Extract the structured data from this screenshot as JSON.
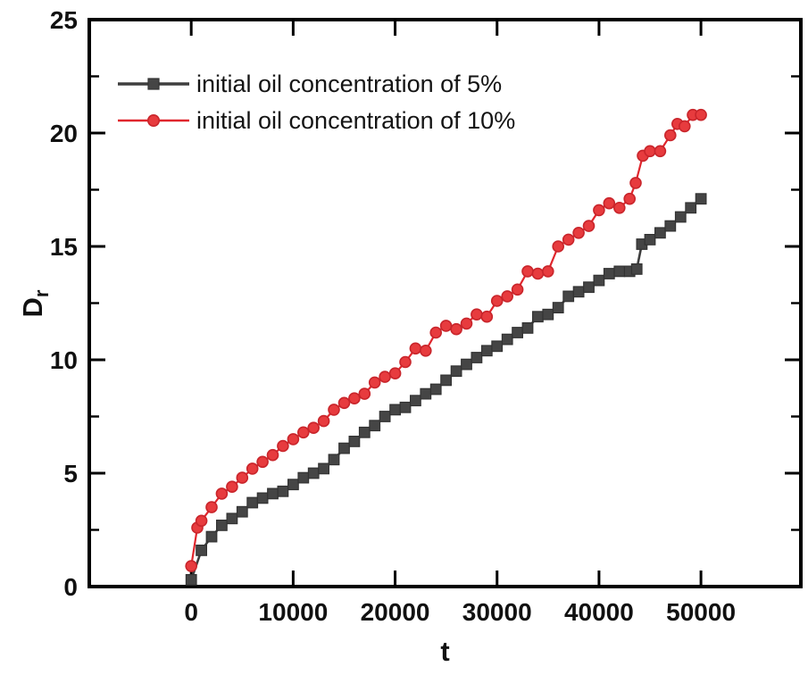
{
  "figure": {
    "background": "#ffffff",
    "legend": {
      "items": [
        {
          "label": "initial oil concentration of 5%",
          "marker": "square",
          "line_color": "#3e3e3e",
          "marker_fill": "#454545",
          "marker_stroke": "#323232"
        },
        {
          "label": "initial oil concentration of 10%",
          "marker": "circle",
          "line_color": "#e0262d",
          "marker_fill": "#e73b3e",
          "marker_stroke": "#c9252b"
        }
      ]
    },
    "axes": {
      "x": {
        "label": "t",
        "major_ticks": [
          0,
          10000,
          20000,
          30000,
          40000,
          50000
        ],
        "range": [
          -10000,
          59800
        ]
      },
      "y": {
        "label": "D",
        "label_subscript": "r",
        "major_ticks": [
          0,
          5,
          10,
          15,
          20,
          25
        ],
        "minor_ticks": [
          2.5,
          7.5,
          12.5,
          17.5,
          22.5
        ],
        "range": [
          0,
          25
        ]
      }
    }
  },
  "chart_data": {
    "type": "line",
    "title": "",
    "xlabel": "t",
    "ylabel": "Dr",
    "xlim": [
      -10000,
      59800
    ],
    "ylim": [
      0,
      25
    ],
    "x_ticks": [
      0,
      10000,
      20000,
      30000,
      40000,
      50000
    ],
    "y_ticks": [
      0,
      5,
      10,
      15,
      20,
      25
    ],
    "y_minor_ticks": [
      2.5,
      7.5,
      12.5,
      17.5,
      22.5
    ],
    "grid": false,
    "legend_position": "upper-left-inside",
    "series": [
      {
        "name": "initial oil concentration of 5%",
        "marker": "square",
        "color": "#454545",
        "x": [
          0,
          1000,
          2000,
          3000,
          4000,
          5000,
          6000,
          7000,
          8000,
          9000,
          10000,
          11000,
          12000,
          13000,
          14000,
          15000,
          16000,
          17000,
          18000,
          19000,
          20000,
          21000,
          22000,
          23000,
          24000,
          25000,
          26000,
          27000,
          28000,
          29000,
          30000,
          31000,
          32000,
          33000,
          34000,
          35000,
          36000,
          37000,
          38000,
          39000,
          40000,
          41000,
          42000,
          43000,
          43700,
          44200,
          45000,
          46000,
          47000,
          48000,
          49000,
          50000
        ],
        "y": [
          0.3,
          1.6,
          2.2,
          2.7,
          3.0,
          3.3,
          3.7,
          3.9,
          4.1,
          4.2,
          4.5,
          4.8,
          5.0,
          5.2,
          5.6,
          6.1,
          6.4,
          6.8,
          7.1,
          7.5,
          7.8,
          7.9,
          8.2,
          8.5,
          8.7,
          9.1,
          9.5,
          9.8,
          10.1,
          10.4,
          10.6,
          10.9,
          11.2,
          11.4,
          11.9,
          12.0,
          12.3,
          12.8,
          13.0,
          13.2,
          13.5,
          13.8,
          13.9,
          13.9,
          14.0,
          15.1,
          15.3,
          15.6,
          15.9,
          16.3,
          16.7,
          17.1
        ]
      },
      {
        "name": "initial oil concentration of 10%",
        "marker": "circle",
        "color": "#e73b3e",
        "x": [
          0,
          600,
          1000,
          2000,
          3000,
          4000,
          5000,
          6000,
          7000,
          8000,
          9000,
          10000,
          11000,
          12000,
          13000,
          14000,
          15000,
          16000,
          17000,
          18000,
          19000,
          20000,
          21000,
          22000,
          23000,
          24000,
          25000,
          26000,
          27000,
          28000,
          29000,
          30000,
          31000,
          32000,
          33000,
          34000,
          35000,
          36000,
          37000,
          38000,
          39000,
          40000,
          41000,
          42000,
          43000,
          43600,
          44300,
          45000,
          46000,
          47000,
          47700,
          48400,
          49200,
          50000
        ],
        "y": [
          0.9,
          2.6,
          2.9,
          3.5,
          4.1,
          4.4,
          4.8,
          5.2,
          5.5,
          5.8,
          6.2,
          6.5,
          6.8,
          7.0,
          7.3,
          7.8,
          8.1,
          8.3,
          8.5,
          9.0,
          9.25,
          9.4,
          9.9,
          10.5,
          10.4,
          11.2,
          11.5,
          11.35,
          11.6,
          12.0,
          11.9,
          12.6,
          12.8,
          13.1,
          13.9,
          13.8,
          13.9,
          15.0,
          15.3,
          15.6,
          15.9,
          16.6,
          16.9,
          16.7,
          17.1,
          17.8,
          19.0,
          19.2,
          19.2,
          19.9,
          20.4,
          20.3,
          20.8,
          20.8
        ]
      }
    ]
  }
}
